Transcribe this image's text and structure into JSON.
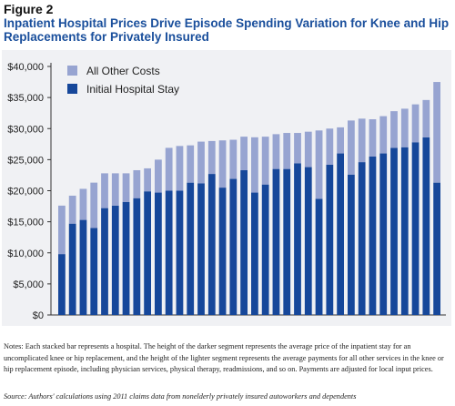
{
  "figure_label": "Figure 2",
  "title": "Inpatient Hospital Prices Drive Episode Spending Variation for Knee and Hip Replacements for Privately Insured",
  "notes": "Notes: Each stacked bar represents a hospital. The height of the darker segment represents the average price of the inpatient stay for an uncomplicated knee or hip replacement, and the height of the lighter segment represents the average payments for all other services in the knee or hip replacement episode, including physician services, physical therapy, readmissions, and so on. Payments are adjusted for local input prices.",
  "source": "Source: Authors' calculations using 2011 claims data from nonelderly privately insured autoworkers and dependents",
  "colors": {
    "initial_hospital_stay": "#16479a",
    "all_other_costs": "#97a4d1",
    "title": "#1a4f9c",
    "panel_background": "#f0f1f4"
  },
  "chart_data": {
    "type": "bar",
    "stacked": true,
    "ylim": [
      0,
      40000
    ],
    "y_ticks": [
      "$0",
      "$5,000",
      "$10,000",
      "$15,000",
      "$20,000",
      "$25,000",
      "$30,000",
      "$35,000",
      "$40,000"
    ],
    "y_tick_values": [
      0,
      5000,
      10000,
      15000,
      20000,
      25000,
      30000,
      35000,
      40000
    ],
    "legend_position": "top-left",
    "grid": false,
    "series": [
      {
        "name": "Initial Hospital Stay",
        "color": "#16479a",
        "values": [
          9800,
          14700,
          15300,
          14000,
          17200,
          17600,
          18200,
          18800,
          19900,
          19700,
          20000,
          20000,
          21300,
          21200,
          22700,
          20500,
          21900,
          23300,
          19700,
          21000,
          23500,
          23500,
          24400,
          23800,
          18700,
          24200,
          26000,
          22600,
          24600,
          25500,
          26000,
          26900,
          27000,
          27800,
          28600,
          21300
        ]
      },
      {
        "name": "All Other Costs",
        "color": "#97a4d1",
        "values": [
          7800,
          4500,
          5000,
          7300,
          5600,
          5200,
          4600,
          4500,
          3700,
          5300,
          6900,
          7200,
          6000,
          6700,
          5300,
          7600,
          6300,
          5400,
          8900,
          7700,
          5600,
          5800,
          4900,
          5700,
          11000,
          5800,
          4200,
          8700,
          7000,
          6000,
          6000,
          5900,
          6200,
          6100,
          6000,
          16200
        ]
      }
    ]
  }
}
